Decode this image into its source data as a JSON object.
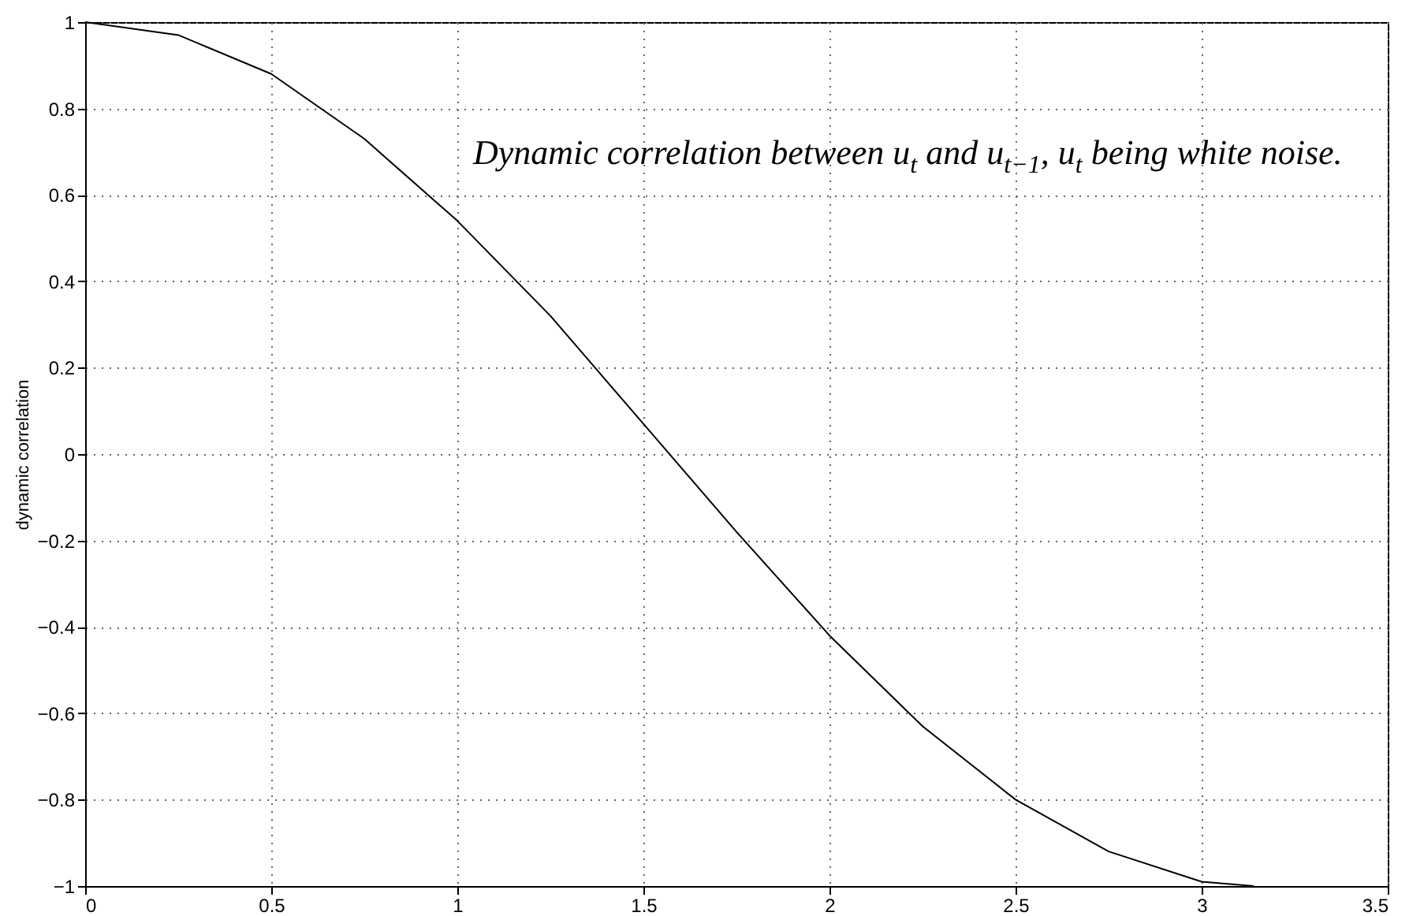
{
  "chart_data": {
    "type": "line",
    "ylabel": "dynamic correlation",
    "x": [
      0,
      0.25,
      0.5,
      0.75,
      1,
      1.25,
      1.5,
      1.75,
      2,
      2.25,
      2.5,
      2.75,
      3,
      3.14
    ],
    "series": [
      {
        "color": "#000000",
        "values": [
          1,
          0.97,
          0.88,
          0.73,
          0.54,
          0.32,
          0.07,
          -0.18,
          -0.42,
          -0.63,
          -0.8,
          -0.92,
          -0.99,
          -1
        ]
      }
    ],
    "xlim": [
      0,
      3.5
    ],
    "xticks": [
      0,
      0.5,
      1,
      1.5,
      2,
      2.5,
      3,
      3.5
    ],
    "ylim": [
      -1,
      1
    ],
    "yticks": [
      -1,
      -0.8,
      -0.6,
      -0.4,
      -0.2,
      0,
      0.2,
      0.4,
      0.6,
      0.8,
      1
    ],
    "grid": true,
    "line_style": "solid",
    "marker": "none",
    "annotations": [
      "Dynamic correlation between u$_{t}$ and u$_{t−1}$, u$_{t}$ being white noise."
    ]
  }
}
